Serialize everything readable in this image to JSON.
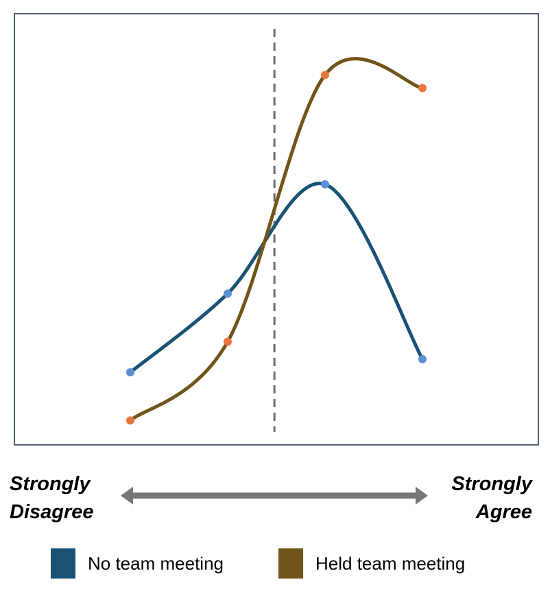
{
  "chart_data": {
    "type": "line",
    "title": "",
    "xlabel": "",
    "ylabel": "",
    "x": [
      1,
      2,
      3,
      4
    ],
    "xlim": [
      0,
      5
    ],
    "ylim": [
      0,
      100
    ],
    "grid": false,
    "reference_line": {
      "x": 2.48,
      "style": "dashed",
      "color": "#6b6b6b"
    },
    "series": [
      {
        "name": "No team meeting",
        "values": [
          18,
          36,
          61,
          21
        ],
        "color": "#1a5276",
        "marker_color": "#5b8fd1"
      },
      {
        "name": "Held team meeting",
        "values": [
          7,
          25,
          86,
          83
        ],
        "color": "#705419",
        "marker_color": "#e8773d"
      }
    ],
    "scale_labels": {
      "left": [
        "Strongly",
        "Disagree"
      ],
      "right": [
        "Strongly",
        "Agree"
      ]
    },
    "legend_position": "bottom"
  }
}
